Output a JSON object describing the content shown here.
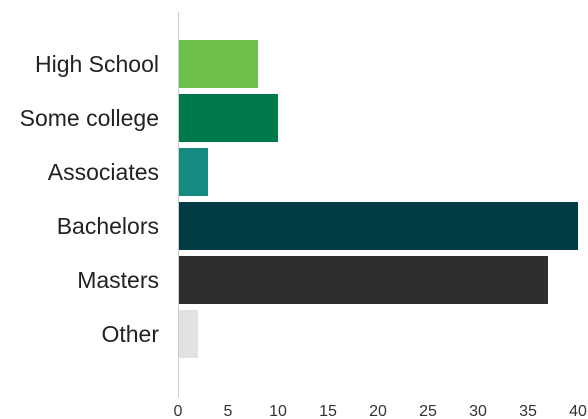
{
  "chart_data": {
    "type": "bar",
    "orientation": "horizontal",
    "categories": [
      "High School",
      "Some college",
      "Associates",
      "Bachelors",
      "Masters",
      "Other"
    ],
    "values": [
      8,
      10,
      3,
      40,
      37,
      2
    ],
    "colors": [
      "#6dbf4b",
      "#007a4b",
      "#158a80",
      "#003c44",
      "#2e2e2e",
      "#e2e2e2"
    ],
    "xlim": [
      0,
      40
    ],
    "x_ticks": [
      0,
      5,
      10,
      15,
      20,
      25,
      30,
      35,
      40
    ],
    "grid": false,
    "legend": "none",
    "title": "",
    "xlabel": "",
    "ylabel": ""
  }
}
